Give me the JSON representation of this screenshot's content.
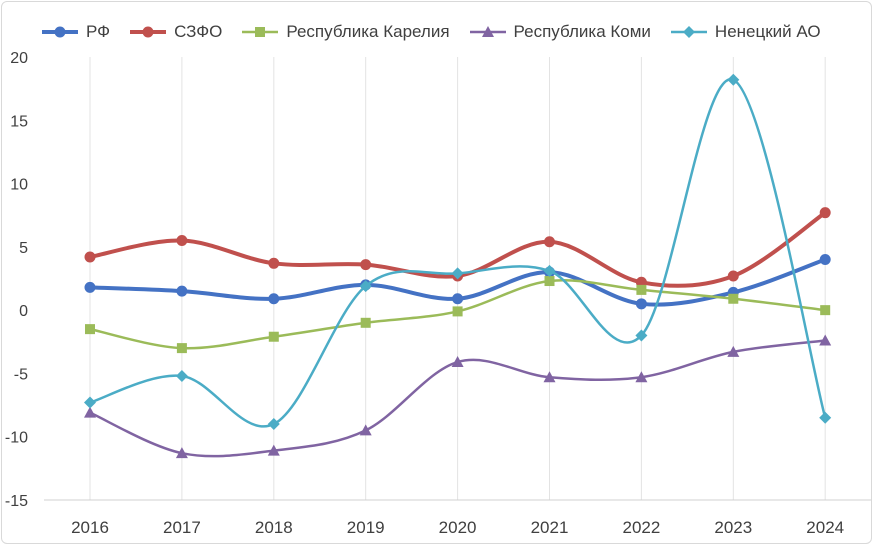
{
  "chart_data": {
    "type": "line",
    "title": "",
    "xlabel": "",
    "ylabel": "",
    "x": [
      "2016",
      "2017",
      "2018",
      "2019",
      "2020",
      "2021",
      "2022",
      "2023",
      "2024"
    ],
    "ylim": [
      -15,
      20
    ],
    "yticks": [
      "20",
      "15",
      "10",
      "5",
      "0",
      "-5",
      "-10",
      "-15"
    ],
    "grid": "vertical",
    "legend_position": "top",
    "series": [
      {
        "name": "РФ",
        "color": "#4472c4",
        "marker": "circle",
        "smooth": true,
        "values": [
          1.8,
          1.5,
          0.9,
          2.0,
          0.9,
          3.0,
          0.5,
          1.4,
          4.0
        ]
      },
      {
        "name": "СЗФО",
        "color": "#c0504d",
        "marker": "circle",
        "smooth": true,
        "values": [
          4.2,
          5.5,
          3.7,
          3.6,
          2.7,
          5.4,
          2.2,
          2.7,
          7.7
        ]
      },
      {
        "name": "Республика Карелия",
        "color": "#9bbb59",
        "marker": "square",
        "smooth": true,
        "values": [
          -1.5,
          -3.0,
          -2.1,
          -1.0,
          -0.1,
          2.3,
          1.6,
          0.9,
          0.0
        ]
      },
      {
        "name": "Республика Коми",
        "color": "#8064a2",
        "marker": "triangle",
        "smooth": true,
        "values": [
          -8.1,
          -11.3,
          -11.1,
          -9.5,
          -4.1,
          -5.3,
          -5.3,
          -3.3,
          -2.4
        ]
      },
      {
        "name": "Ненецкий АО",
        "color": "#4bacc6",
        "marker": "diamond",
        "smooth": true,
        "values": [
          -7.3,
          -5.2,
          -9.0,
          1.9,
          2.9,
          3.1,
          -2.0,
          18.2,
          -8.5
        ]
      }
    ]
  }
}
